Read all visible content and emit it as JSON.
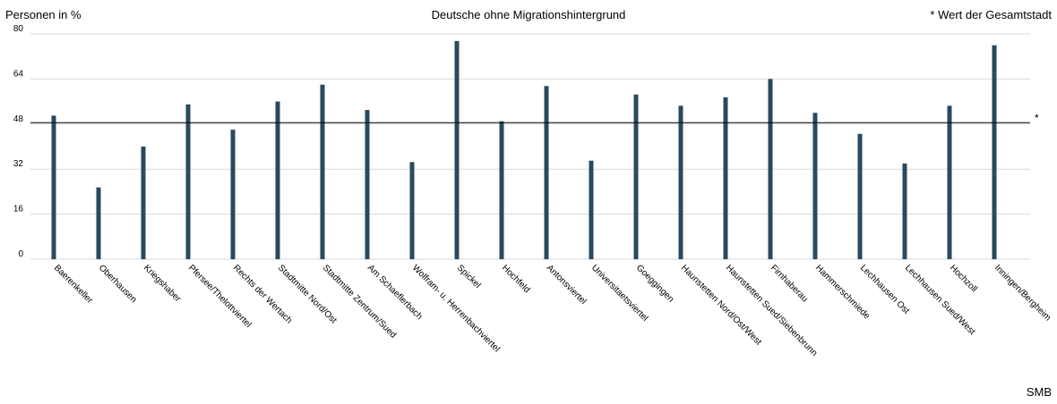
{
  "header": {
    "ylabel": "Personen in %",
    "title": "Deutsche ohne Migrationshintergrund",
    "note": "* Wert der Gesamtstadt"
  },
  "footer": {
    "source": "SMB"
  },
  "colors": {
    "bar": "#294a5e",
    "grid": "#d9d9d9",
    "reference_line": "#000000"
  },
  "chart_data": {
    "type": "bar",
    "ylim": [
      0,
      80
    ],
    "yticks": [
      0,
      16,
      32,
      48,
      64,
      80
    ],
    "grid": true,
    "reference": {
      "value": 48.5,
      "marker": "*"
    },
    "categories": [
      "Baerenkeller",
      "Oberhausen",
      "Kriegshaber",
      "Pfersee/Thelottviertel",
      "Rechts der Wertach",
      "Stadtmitte Nord/Ost",
      "Stadtmitte Zentrum/Sued",
      "Am Schaeflerbach",
      "Wolfram- u. Herrenbachviertel",
      "Spickel",
      "Hochfeld",
      "Antonsviertel",
      "Universitaetsviertel",
      "Goeggingen",
      "Haunstetten Nord/Ost/West",
      "Haunstetten Sued/Siebenbrunn",
      "Firnhaberau",
      "Hammerschmiede",
      "Lechhausen Ost",
      "Lechhausen Sued/West",
      "Hochzoll",
      "Inningen/Bergheim"
    ],
    "values": [
      51,
      25.5,
      40,
      55,
      46,
      56,
      62,
      53,
      34.5,
      77.5,
      49,
      61.5,
      35,
      58.5,
      54.5,
      57.5,
      64,
      52,
      44.5,
      34,
      54.5,
      76
    ]
  }
}
